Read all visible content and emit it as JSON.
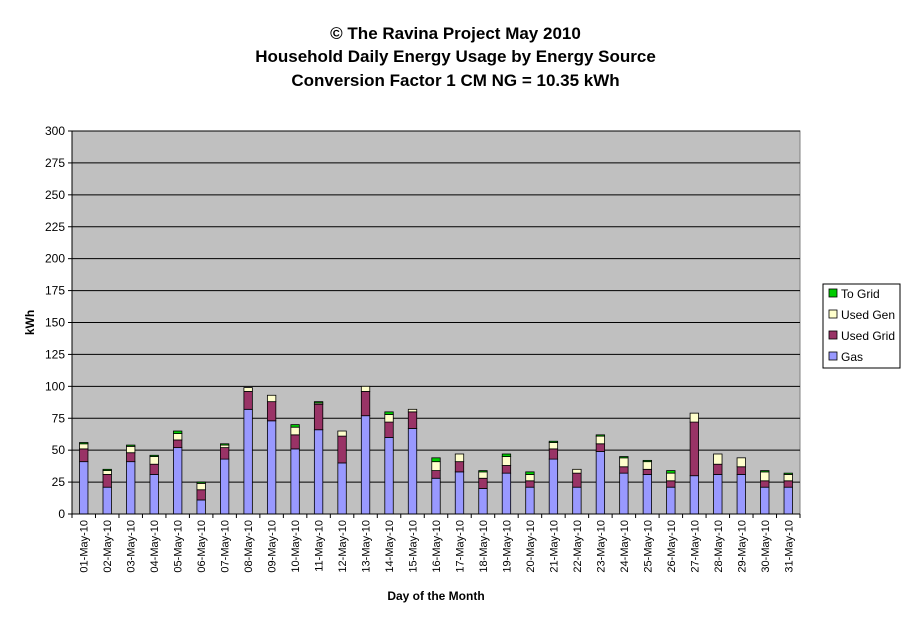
{
  "chart_data": {
    "type": "bar",
    "stacked": true,
    "title": [
      "© The Ravina Project May 2010",
      "Household Daily Energy Usage by Energy Source",
      "Conversion Factor 1 CM NG = 10.35 kWh"
    ],
    "xlabel": "Day of the Month",
    "ylabel": "kWh",
    "ylim": [
      0,
      300
    ],
    "yticks": [
      0,
      25,
      50,
      75,
      100,
      125,
      150,
      175,
      200,
      225,
      250,
      275,
      300
    ],
    "grid": true,
    "legend_position": "right",
    "categories": [
      "01-May-10",
      "02-May-10",
      "03-May-10",
      "04-May-10",
      "05-May-10",
      "06-May-10",
      "07-May-10",
      "08-May-10",
      "09-May-10",
      "10-May-10",
      "11-May-10",
      "12-May-10",
      "13-May-10",
      "14-May-10",
      "15-May-10",
      "16-May-10",
      "17-May-10",
      "18-May-10",
      "19-May-10",
      "20-May-10",
      "21-May-10",
      "22-May-10",
      "23-May-10",
      "24-May-10",
      "25-May-10",
      "26-May-10",
      "27-May-10",
      "28-May-10",
      "29-May-10",
      "30-May-10",
      "31-May-10"
    ],
    "series": [
      {
        "name": "Gas",
        "color": "#9999ff",
        "values": [
          41,
          21,
          41,
          31,
          52,
          11,
          43,
          82,
          73,
          51,
          66,
          40,
          77,
          60,
          67,
          28,
          33,
          20,
          32,
          21,
          43,
          21,
          49,
          32,
          31,
          21,
          30,
          31,
          31,
          21,
          21
        ]
      },
      {
        "name": "Used Grid",
        "color": "#993366",
        "values": [
          10,
          10,
          7,
          8,
          6,
          8,
          9,
          14,
          15,
          11,
          20,
          21,
          19,
          12,
          13,
          6,
          8,
          8,
          6,
          5,
          8,
          11,
          6,
          5,
          4,
          5,
          42,
          8,
          6,
          5,
          5
        ]
      },
      {
        "name": "Used Gen",
        "color": "#ffffcc",
        "values": [
          4,
          3,
          5,
          6,
          5,
          5,
          2,
          3,
          5,
          6,
          1,
          4,
          4,
          6,
          2,
          7,
          6,
          5,
          7,
          5,
          5,
          3,
          6,
          7,
          6,
          6,
          7,
          8,
          7,
          7,
          5
        ]
      },
      {
        "name": "To Grid",
        "color": "#00cc00",
        "values": [
          1,
          1,
          1,
          1,
          2,
          1,
          1,
          0,
          0,
          2,
          1,
          0,
          0,
          2,
          0,
          3,
          0,
          1,
          2,
          2,
          1,
          0,
          1,
          1,
          1,
          2,
          0,
          0,
          0,
          1,
          1
        ]
      }
    ]
  },
  "colors": {
    "plot_bg": "#c0c0c0",
    "grid": "#000000"
  }
}
